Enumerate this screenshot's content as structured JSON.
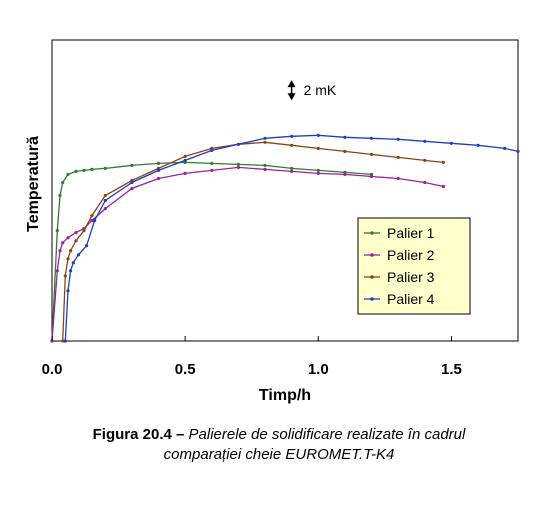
{
  "caption": {
    "label": "Figura 20.4",
    "dash": " – ",
    "line1": "Palierele de solidificare realizate în cadrul",
    "line2": "comparației cheie EUROMET.T-K4"
  },
  "chart_data": {
    "type": "line",
    "title": "",
    "xlabel": "Timp/h",
    "ylabel": "Temperatură",
    "xlim": [
      0,
      1.75
    ],
    "ylim": [
      0,
      30
    ],
    "x_ticks": [
      "0.0",
      "0.5",
      "1.0",
      "1.5"
    ],
    "x_tick_values": [
      0,
      0.5,
      1.0,
      1.5
    ],
    "grid": false,
    "legend_position": "lower-right",
    "scale_annotation": {
      "label": "2 mK",
      "value": 2,
      "unit": "mK",
      "position": [
        1.05,
        25
      ]
    },
    "series": [
      {
        "name": "Palier 1",
        "color": "#2e7d32",
        "x": [
          0,
          0.02,
          0.03,
          0.04,
          0.06,
          0.09,
          0.12,
          0.15,
          0.2,
          0.3,
          0.4,
          0.5,
          0.6,
          0.7,
          0.8,
          0.9,
          1.0,
          1.1,
          1.2
        ],
        "y": [
          0,
          11,
          14.5,
          15.8,
          16.6,
          16.9,
          17.0,
          17.1,
          17.2,
          17.5,
          17.7,
          17.8,
          17.7,
          17.6,
          17.5,
          17.2,
          17.0,
          16.8,
          16.6
        ]
      },
      {
        "name": "Palier 2",
        "color": "#a020a0",
        "x": [
          0,
          0.02,
          0.03,
          0.04,
          0.06,
          0.09,
          0.12,
          0.15,
          0.2,
          0.3,
          0.4,
          0.5,
          0.6,
          0.7,
          0.8,
          0.9,
          1.0,
          1.1,
          1.2,
          1.3,
          1.4,
          1.47
        ],
        "y": [
          0,
          7,
          9.0,
          9.8,
          10.3,
          10.8,
          11.2,
          12.0,
          13.2,
          15.2,
          16.2,
          16.7,
          17.0,
          17.3,
          17.1,
          16.9,
          16.7,
          16.6,
          16.4,
          16.2,
          15.8,
          15.4
        ]
      },
      {
        "name": "Palier 3",
        "color": "#8b4513",
        "x": [
          0.04,
          0.05,
          0.06,
          0.07,
          0.09,
          0.12,
          0.15,
          0.2,
          0.3,
          0.4,
          0.5,
          0.6,
          0.7,
          0.8,
          0.9,
          1.0,
          1.1,
          1.2,
          1.3,
          1.4,
          1.47
        ],
        "y": [
          0,
          6.5,
          8.2,
          9.0,
          10.0,
          11.0,
          12.5,
          14.5,
          16.0,
          17.2,
          18.4,
          19.2,
          19.6,
          19.8,
          19.5,
          19.2,
          18.9,
          18.6,
          18.3,
          18.0,
          17.8
        ]
      },
      {
        "name": "Palier 4",
        "color": "#1f3fbf",
        "x": [
          0.05,
          0.06,
          0.07,
          0.08,
          0.1,
          0.13,
          0.16,
          0.2,
          0.3,
          0.4,
          0.5,
          0.6,
          0.7,
          0.8,
          0.9,
          1.0,
          1.1,
          1.2,
          1.3,
          1.4,
          1.5,
          1.6,
          1.7,
          1.75
        ],
        "y": [
          0,
          5,
          7.0,
          7.8,
          8.6,
          9.5,
          12.0,
          14.0,
          15.8,
          17.0,
          18.0,
          19.0,
          19.6,
          20.2,
          20.4,
          20.5,
          20.3,
          20.2,
          20.1,
          19.9,
          19.7,
          19.5,
          19.2,
          18.9
        ]
      }
    ]
  }
}
